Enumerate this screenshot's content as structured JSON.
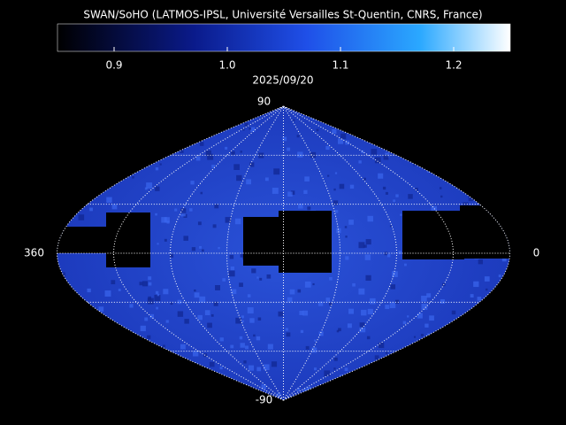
{
  "title": "SWAN/SoHO (LATMOS-IPSL, Université Versailles St-Quentin, CNRS, France)",
  "date": "2025/09/20",
  "colorbar": {
    "range": [
      0.85,
      1.25
    ],
    "ticks": [
      0.9,
      {
        "value": 1,
        "label": "1.0"
      },
      1.1,
      1.2
    ]
  },
  "map": {
    "lat_ticks": [
      90,
      -90
    ],
    "lon_ticks": [
      360,
      0
    ]
  }
}
